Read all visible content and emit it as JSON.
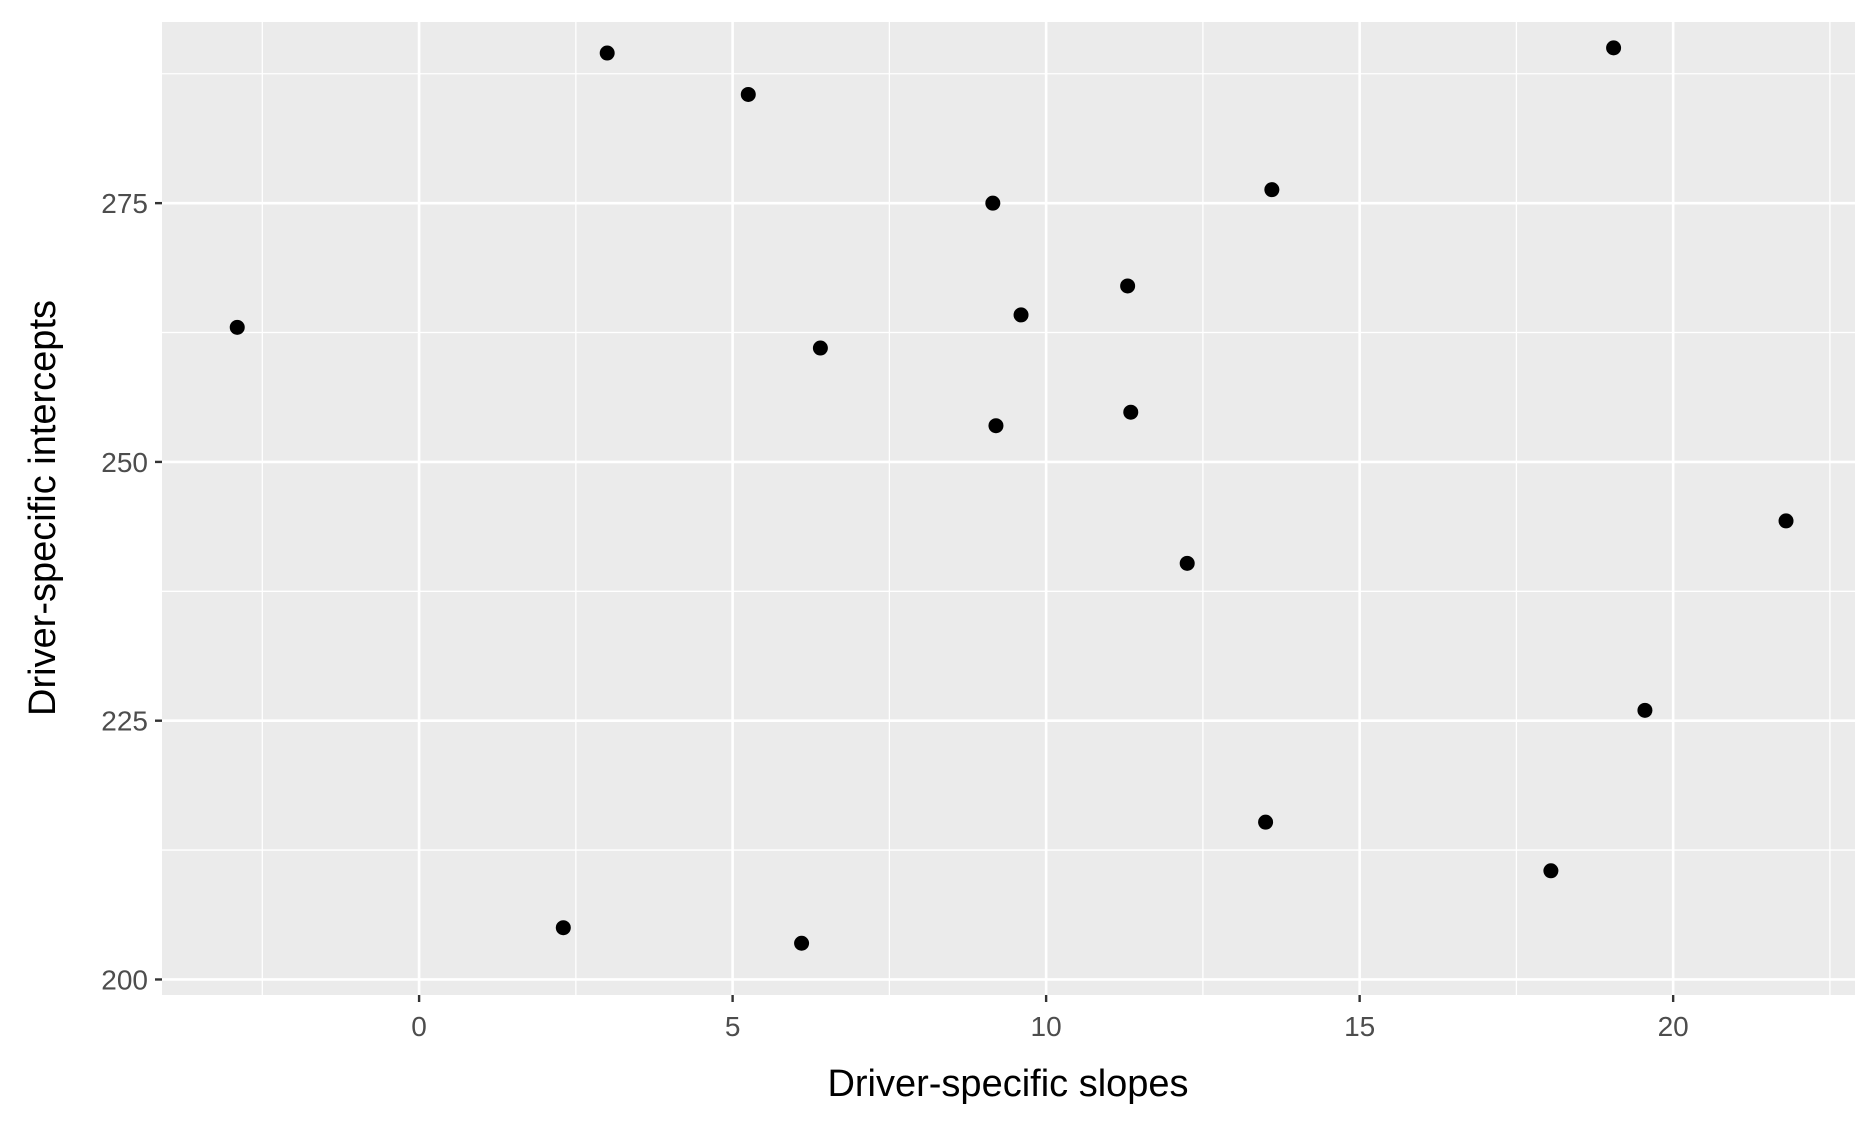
{
  "chart_data": {
    "type": "scatter",
    "title": "",
    "xlabel": "Driver-specific slopes",
    "ylabel": "Driver-specific intercepts",
    "xlim": [
      -4.1,
      22.9
    ],
    "ylim": [
      198.5,
      292.5
    ],
    "x_ticks": [
      0,
      5,
      10,
      15,
      20
    ],
    "y_ticks": [
      200,
      225,
      250,
      275
    ],
    "x_tick_labels": [
      "0",
      "5",
      "10",
      "15",
      "20"
    ],
    "y_tick_labels": [
      "200",
      "225",
      "250",
      "275"
    ],
    "grid": true,
    "legend": "none",
    "colors": {
      "panel": "#ebebeb",
      "grid": "#ffffff",
      "point": "#000000",
      "tick_text": "#4d4d4d"
    },
    "points": [
      {
        "x": -2.9,
        "y": 263.0
      },
      {
        "x": 2.3,
        "y": 205.0
      },
      {
        "x": 3.0,
        "y": 289.5
      },
      {
        "x": 5.25,
        "y": 285.5
      },
      {
        "x": 6.1,
        "y": 203.5
      },
      {
        "x": 6.4,
        "y": 261.0
      },
      {
        "x": 9.15,
        "y": 275.0
      },
      {
        "x": 9.2,
        "y": 253.5
      },
      {
        "x": 9.6,
        "y": 264.2
      },
      {
        "x": 11.3,
        "y": 267.0
      },
      {
        "x": 11.35,
        "y": 254.8
      },
      {
        "x": 12.25,
        "y": 240.2
      },
      {
        "x": 13.5,
        "y": 215.2
      },
      {
        "x": 13.6,
        "y": 276.3
      },
      {
        "x": 18.05,
        "y": 210.5
      },
      {
        "x": 19.05,
        "y": 290.0
      },
      {
        "x": 19.55,
        "y": 226.0
      },
      {
        "x": 21.8,
        "y": 244.3
      }
    ]
  }
}
